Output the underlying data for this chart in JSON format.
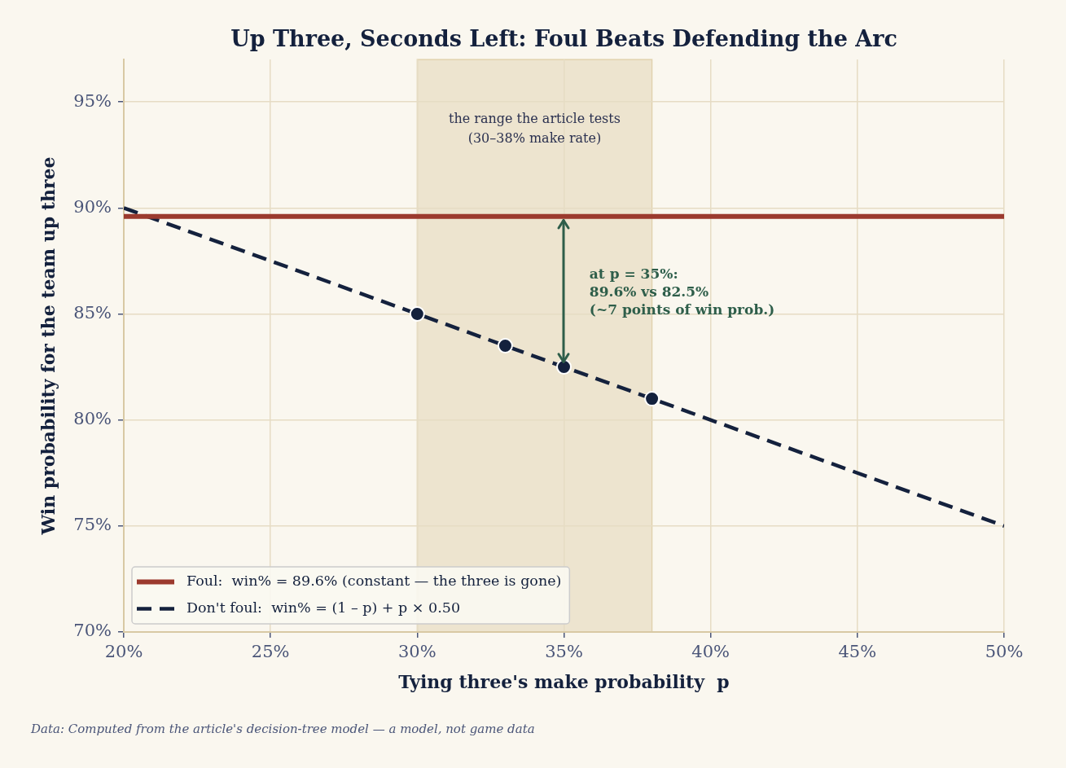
{
  "chart_data": {
    "type": "line",
    "title": "Up Three, Seconds Left: Foul Beats Defending the Arc",
    "xlabel": "Tying three's make probability  p",
    "ylabel": "Win probability for the team up three",
    "series": [
      {
        "name": "Foul:  win% = 89.6% (constant — the three is gone)",
        "color": "#9b3a2e",
        "x": [
          20,
          50
        ],
        "values": [
          89.6,
          89.6
        ],
        "line_style": "solid",
        "marker": "none"
      },
      {
        "name": "Don't foul:  win% = (1 – p) + p × 0.50",
        "color": "#14213d",
        "x": [
          20,
          50
        ],
        "values": [
          90,
          75
        ],
        "line_style": "dashed",
        "marker": "none"
      },
      {
        "type": "scatter",
        "color": "#14213d",
        "x": [
          30,
          33,
          35,
          38
        ],
        "values": [
          85,
          83.5,
          82.5,
          81
        ],
        "marker": "circle"
      }
    ],
    "xlim": [
      20,
      50
    ],
    "xticks": [
      {
        "value": 20,
        "label": "20%"
      },
      {
        "value": 25,
        "label": "25%"
      },
      {
        "value": 30,
        "label": "30%"
      },
      {
        "value": 35,
        "label": "35%"
      },
      {
        "value": 40,
        "label": "40%"
      },
      {
        "value": 45,
        "label": "45%"
      },
      {
        "value": 50,
        "label": "50%"
      }
    ],
    "ylim": [
      70,
      97
    ],
    "yticks": [
      {
        "value": 70,
        "label": "70%"
      },
      {
        "value": 75,
        "label": "75%"
      },
      {
        "value": 80,
        "label": "80%"
      },
      {
        "value": 85,
        "label": "85%"
      },
      {
        "value": 90,
        "label": "90%"
      },
      {
        "value": 95,
        "label": "95%"
      }
    ],
    "grid": true,
    "legend": "bottom left",
    "bands": [
      {
        "axis": "x",
        "from": 30,
        "to": 38,
        "label": "the range the article tests\n(30–38% make rate)",
        "color": "#ede4cf"
      }
    ],
    "annotations": [
      "at p = 35%:\n89.6% vs 82.5%\n(~7 points of win prob.)",
      "Data: Computed from the article's decision-tree model — a model, not game data"
    ]
  }
}
